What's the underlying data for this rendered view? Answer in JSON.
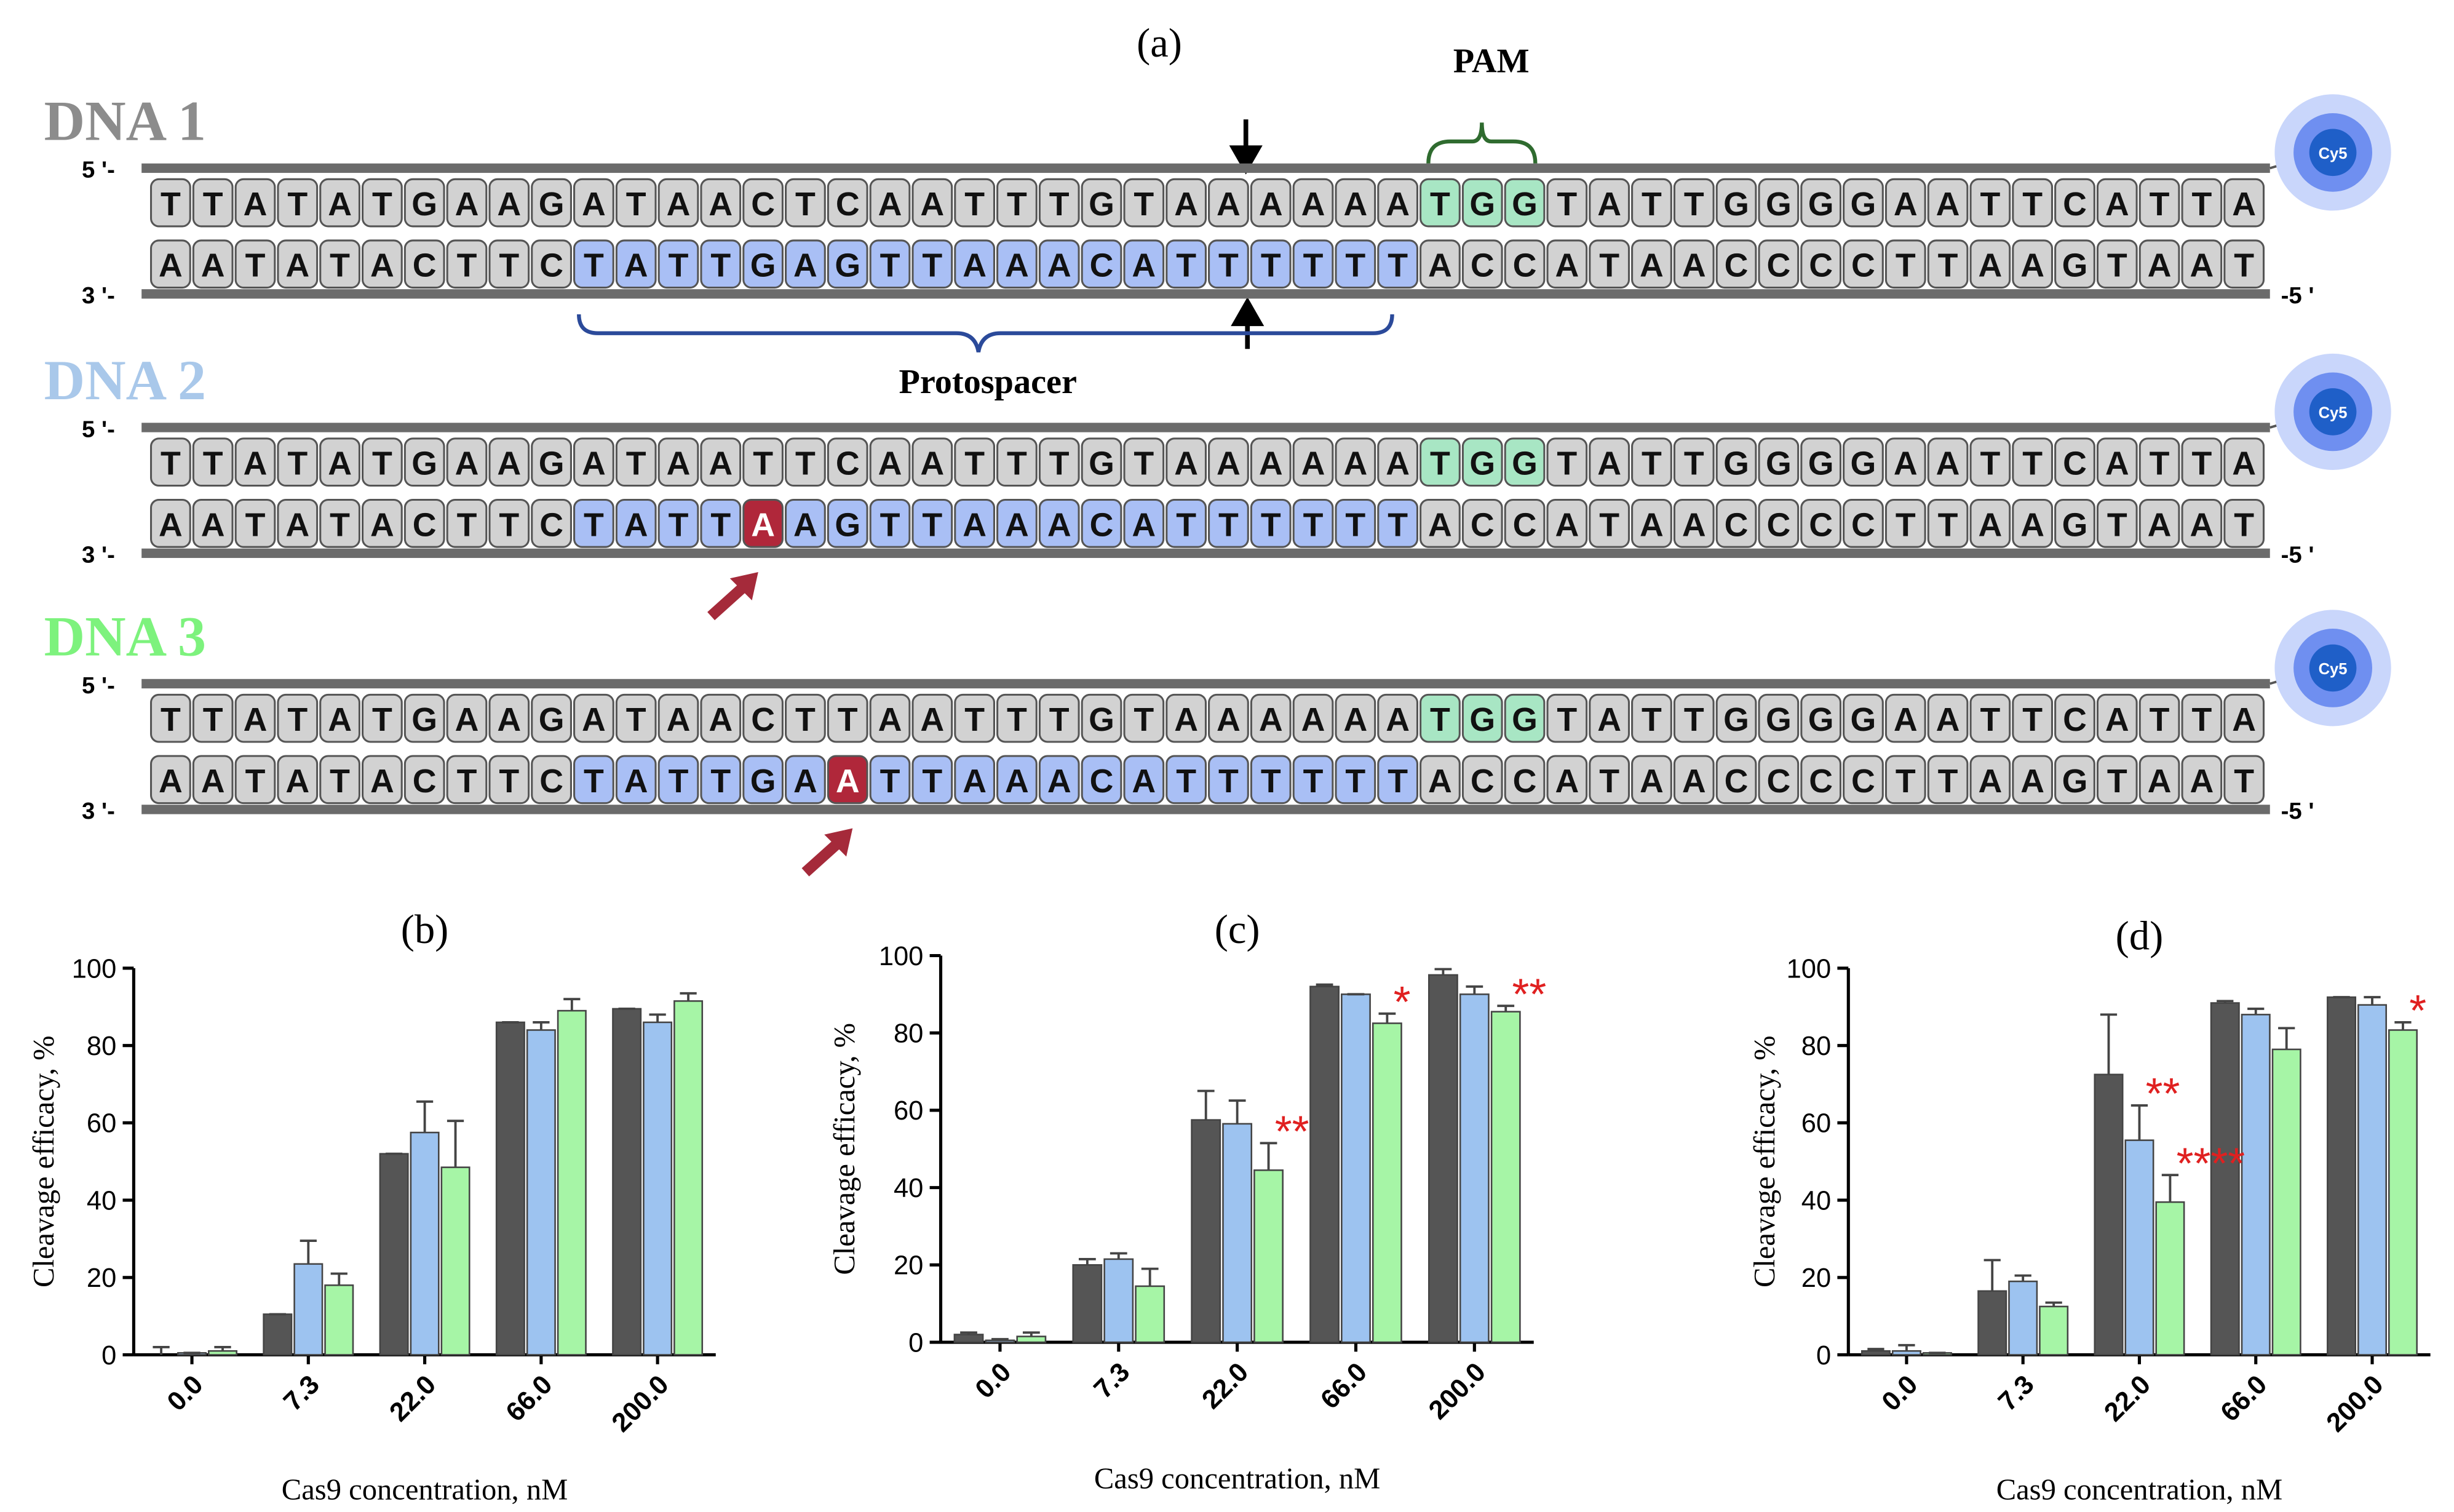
{
  "panel_a": {
    "label": "(a)",
    "pam_label": "PAM",
    "protospacer_label": "Protospacer",
    "five_prime": "5 '-",
    "three_prime": "3 '-",
    "end_label": "-5 '",
    "dye": "Cy5",
    "dnas": [
      {
        "name": "DNA 1",
        "color": "#8c8c8c",
        "top": "TTATATGAAGATAACTCAATTTGTAAAAAATGGTATTGGGGAATTCATTA",
        "bottom": "AATATACTTCTATTGAGTTAAACATTTTTTACCATAACCCCTTAAGTAAT"
      },
      {
        "name": "DNA 2",
        "color": "#a9c8ea",
        "top": "TTATATGAAGATAATTCAATTTGTAAAAAATGGTATTGGGGAATTCATTA",
        "bottom": "AATATACTTCTATTAAGTTAAACATTTTTTACCATAACCCCTTAAGTAAT"
      },
      {
        "name": "DNA 3",
        "color": "#7df27d",
        "top": "TTATATGAAGATAACTTAATTTGTAAAAAATGGTATTGGGGAATTCATTA",
        "bottom": "AATATACTTCTATTGAATTAAACATTTTTTACCATAACCCCTTAAGTAAT"
      }
    ]
  },
  "chart_data": [
    {
      "type": "bar",
      "title": "(b)",
      "x_label": "Cas9 concentration, nM",
      "y_label": "Cleavage efficacy, %",
      "categories": [
        "0.0",
        "7.3",
        "22.0",
        "66.0",
        "200.0"
      ],
      "ylim": [
        0,
        100
      ],
      "yticks": [
        0,
        20,
        40,
        60,
        80,
        100
      ],
      "series": [
        {
          "color": "#555555",
          "values": [
            0,
            10.5,
            52,
            86,
            89.5
          ],
          "errors": [
            2,
            0,
            0,
            0,
            0
          ]
        },
        {
          "color": "#9dc3f0",
          "values": [
            0.5,
            23.5,
            57.5,
            84,
            86
          ],
          "errors": [
            0,
            6,
            8,
            2,
            2
          ]
        },
        {
          "color": "#a6f5a6",
          "values": [
            1,
            18,
            48.5,
            89,
            91.5
          ],
          "errors": [
            1,
            3,
            12,
            3,
            2
          ]
        }
      ],
      "annotations": []
    },
    {
      "type": "bar",
      "title": "(c)",
      "x_label": "Cas9 concentration, nM",
      "y_label": "Cleavage efficacy, %",
      "categories": [
        "0.0",
        "7.3",
        "22.0",
        "66.0",
        "200.0"
      ],
      "ylim": [
        0,
        100
      ],
      "yticks": [
        0,
        20,
        40,
        60,
        80,
        100
      ],
      "series": [
        {
          "color": "#555555",
          "values": [
            2,
            20,
            57.5,
            92,
            95
          ],
          "errors": [
            0.5,
            1.5,
            7.5,
            0.5,
            1.5
          ]
        },
        {
          "color": "#9dc3f0",
          "values": [
            0.5,
            21.5,
            56.5,
            90,
            90
          ],
          "errors": [
            0.3,
            1.5,
            6,
            0,
            2
          ]
        },
        {
          "color": "#a6f5a6",
          "values": [
            1.5,
            14.5,
            44.5,
            82.5,
            85.5
          ],
          "errors": [
            1,
            4.5,
            7,
            2.5,
            1.5
          ]
        }
      ],
      "annotations": [
        {
          "text": "**",
          "series": 2,
          "index": 2
        },
        {
          "text": "*",
          "series": 2,
          "index": 3
        },
        {
          "text": "**",
          "series": 2,
          "index": 4
        }
      ]
    },
    {
      "type": "bar",
      "title": "(d)",
      "x_label": "Cas9 concentration, nM",
      "y_label": "Cleavage efficacy, %",
      "categories": [
        "0.0",
        "7.3",
        "22.0",
        "66.0",
        "200.0"
      ],
      "ylim": [
        0,
        100
      ],
      "yticks": [
        0,
        20,
        40,
        60,
        80,
        100
      ],
      "series": [
        {
          "color": "#555555",
          "values": [
            1,
            16.5,
            72.5,
            91,
            92.5
          ],
          "errors": [
            0.5,
            8,
            15.5,
            0.5,
            0
          ]
        },
        {
          "color": "#9dc3f0",
          "values": [
            1,
            19,
            55.5,
            88,
            90.5
          ],
          "errors": [
            1.5,
            1.5,
            9,
            1.5,
            2
          ]
        },
        {
          "color": "#a6f5a6",
          "values": [
            0.5,
            12.5,
            39.5,
            79,
            84
          ],
          "errors": [
            0,
            1,
            7,
            5.5,
            2
          ]
        }
      ],
      "annotations": [
        {
          "text": "**",
          "series": 1,
          "index": 2
        },
        {
          "text": "****",
          "series": 2,
          "index": 2
        },
        {
          "text": "*",
          "series": 2,
          "index": 4
        }
      ]
    }
  ]
}
